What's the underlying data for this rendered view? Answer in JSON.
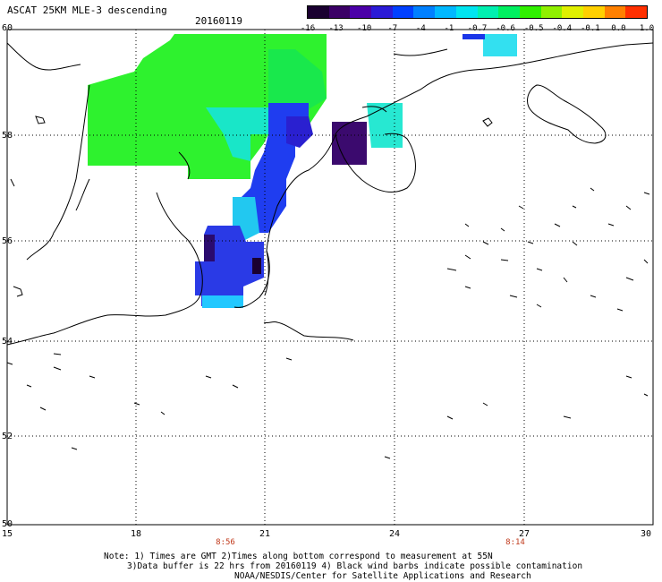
{
  "header": {
    "title": "ASCAT 25KM MLE-3 descending",
    "date": "20160119"
  },
  "colorbar": {
    "labels": [
      "-16",
      "-13",
      "-10",
      "-7",
      "-4",
      "-1",
      "-0.7",
      "-0.6",
      "-0.5",
      "-0.4",
      "-0.1",
      "0.0",
      "1.0"
    ],
    "colors": [
      "#1a0030",
      "#3b0066",
      "#4b00a8",
      "#2b1bd6",
      "#0040ff",
      "#0080ff",
      "#00b8ff",
      "#00e5f0",
      "#00f0b0",
      "#00f060",
      "#30f000",
      "#90f000",
      "#e0f000",
      "#ffd000",
      "#ff8000",
      "#ff3000"
    ]
  },
  "axes": {
    "lat_labels": [
      "60",
      "58",
      "56",
      "54",
      "52",
      "50"
    ],
    "lon_labels": [
      "15",
      "18",
      "21",
      "24",
      "27",
      "30"
    ],
    "time_labels": [
      "8:56",
      "8:14"
    ]
  },
  "notes": {
    "line1": "Note: 1) Times are GMT 2)Times along bottom correspond to measurement at 55N",
    "line2": "3)Data buffer is 22 hrs from 20160119 4) Black wind barbs indicate possible contamination",
    "line3": "NOAA/NESDIS/Center for Satellite Applications and Research"
  }
}
